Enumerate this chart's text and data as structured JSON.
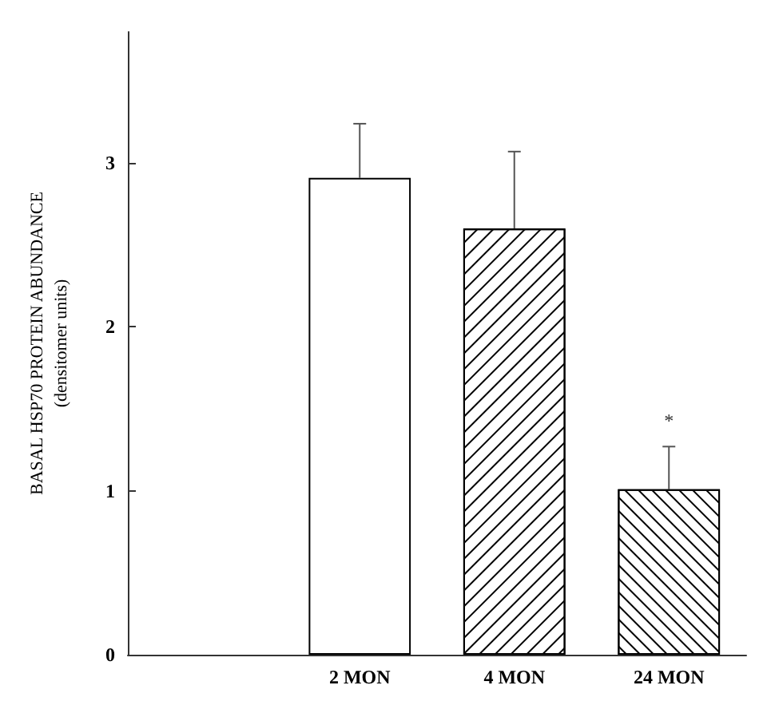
{
  "chart_data": {
    "type": "bar",
    "ylabel": "BASAL HSP70 PROTEIN ABUNDANCE\n(densitomer units)",
    "categories": [
      "2 MON",
      "4 MON",
      "24 MON"
    ],
    "values": [
      2.91,
      2.6,
      1.01
    ],
    "errors": [
      [
        2.91,
        3.24
      ],
      [
        2.6,
        3.07
      ],
      [
        1.01,
        1.27
      ]
    ],
    "colors": [
      "#ffffff",
      "#ffffff",
      "#ffffff"
    ],
    "ylim": [
      0,
      3.8
    ],
    "yticks": [
      0,
      1,
      2,
      3
    ],
    "grid": false,
    "annotations": [
      "*"
    ]
  }
}
